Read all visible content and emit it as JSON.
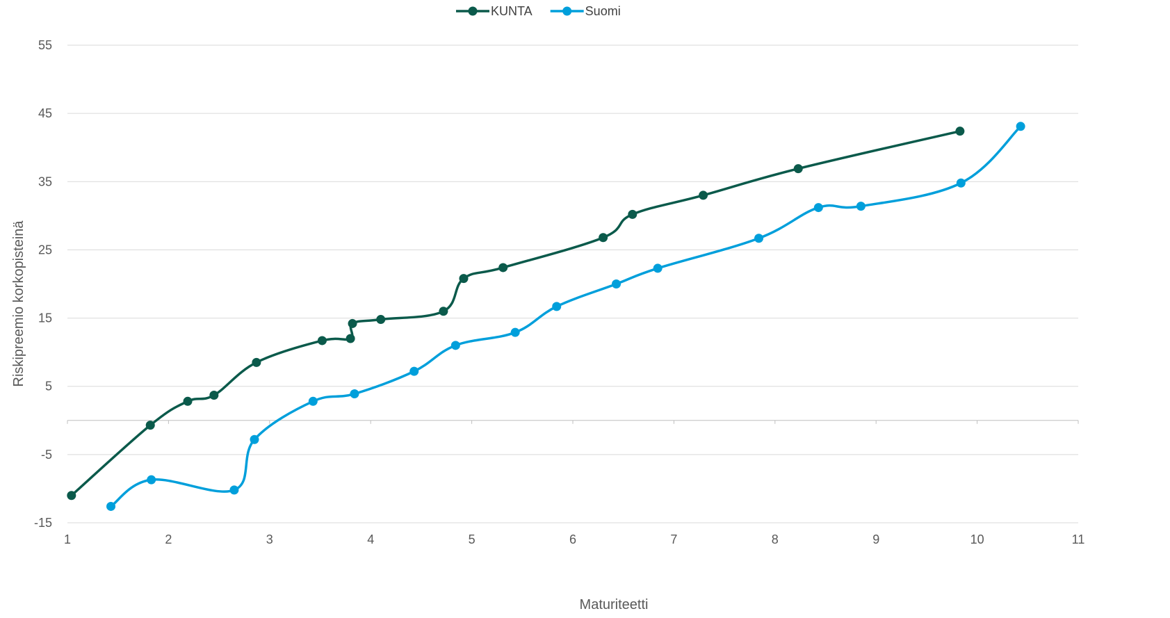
{
  "chart_data": {
    "type": "line",
    "title": "",
    "xlabel": "Maturiteetti",
    "ylabel": "Riskipreemio korkopisteinä",
    "xlim": [
      1,
      11
    ],
    "ylim": [
      -15,
      55
    ],
    "x_ticks": [
      1,
      2,
      3,
      4,
      5,
      6,
      7,
      8,
      9,
      10,
      11
    ],
    "y_ticks": [
      -15,
      -5,
      5,
      15,
      25,
      35,
      45,
      55
    ],
    "grid": "horizontal",
    "legend_position": "top",
    "series": [
      {
        "name": "KUNTA",
        "color": "#0b5a4b",
        "points": [
          [
            1.04,
            -11.0
          ],
          [
            1.82,
            -0.7
          ],
          [
            2.19,
            2.8
          ],
          [
            2.45,
            3.7
          ],
          [
            2.87,
            8.5
          ],
          [
            3.52,
            11.7
          ],
          [
            3.8,
            12.0
          ],
          [
            3.82,
            14.2
          ],
          [
            4.1,
            14.8
          ],
          [
            4.72,
            16.0
          ],
          [
            4.92,
            20.8
          ],
          [
            5.31,
            22.4
          ],
          [
            6.3,
            26.8
          ],
          [
            6.59,
            30.2
          ],
          [
            7.29,
            33.0
          ],
          [
            8.23,
            36.9
          ],
          [
            9.83,
            42.4
          ]
        ]
      },
      {
        "name": "Suomi",
        "color": "#009fdb",
        "points": [
          [
            1.43,
            -12.6
          ],
          [
            1.83,
            -8.7
          ],
          [
            2.65,
            -10.2
          ],
          [
            2.85,
            -2.8
          ],
          [
            3.43,
            2.8
          ],
          [
            3.84,
            3.9
          ],
          [
            4.43,
            7.2
          ],
          [
            4.84,
            11.0
          ],
          [
            5.43,
            12.9
          ],
          [
            5.84,
            16.7
          ],
          [
            6.43,
            20.0
          ],
          [
            6.84,
            22.3
          ],
          [
            7.84,
            26.7
          ],
          [
            8.43,
            31.2
          ],
          [
            8.85,
            31.4
          ],
          [
            9.84,
            34.8
          ],
          [
            10.43,
            43.1
          ]
        ]
      }
    ]
  }
}
